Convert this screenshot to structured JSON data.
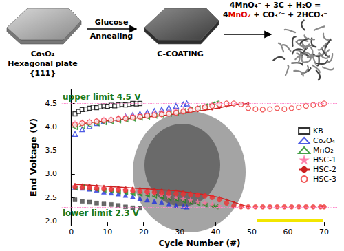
{
  "diagram": {
    "start_labels": [
      "Co₃O₄",
      "Hexagonal plate",
      "{111}"
    ],
    "arrow_top": "Glucose",
    "arrow_bottom": "Annealing",
    "middle_label": "C-COATING",
    "equation": {
      "lines": [
        "4MnO₄⁻ + 3C + H₂O =",
        "4MnO₂ + CO₃²⁻ + 2HCO₃⁻"
      ],
      "highlight": "MnO₂",
      "color": "#e00000"
    }
  },
  "chart_data": {
    "type": "scatter",
    "x_label": "Cycle Number (#)",
    "y_label": "End Voltage (V)",
    "xlim": [
      -3,
      74
    ],
    "xticks": [
      0,
      10,
      20,
      30,
      40,
      50,
      60,
      70
    ],
    "ylim": [
      1.9,
      4.8
    ],
    "yticks": [
      {
        "value": 2,
        "label": "2.0"
      },
      2.5,
      {
        "value": 3,
        "label": "3.0"
      },
      3.5,
      {
        "value": 4,
        "label": "4.0"
      },
      4.5
    ],
    "grid": false,
    "legend": "right",
    "annotations": [
      {
        "text": "upper limit 4.5 V",
        "value": 4.5,
        "color": "#1a7a1a"
      },
      {
        "text": "lower limit 2.3 V",
        "value": 2.3,
        "color": "#1a7a1a"
      }
    ],
    "series": [
      {
        "name": "KB",
        "color": "#000000",
        "marker": "open-square",
        "x": [
          1,
          2,
          3,
          4,
          5,
          6,
          7,
          8,
          9,
          10,
          11,
          12,
          13,
          14,
          15,
          16,
          17,
          18,
          19
        ],
        "values": [
          4.28,
          4.33,
          4.37,
          4.38,
          4.4,
          4.42,
          4.41,
          4.43,
          4.45,
          4.44,
          4.46,
          4.45,
          4.47,
          4.48,
          4.47,
          4.48,
          4.5,
          4.49,
          4.5
        ]
      },
      {
        "name": "KB",
        "color": "#444444",
        "marker": "filled-square",
        "x": [
          1,
          3,
          5,
          7,
          9,
          11,
          13,
          15,
          17,
          19
        ],
        "values": [
          2.45,
          2.42,
          2.4,
          2.38,
          2.36,
          2.35,
          2.33,
          2.3,
          2.28,
          2.27
        ]
      },
      {
        "name": "Co₃O₄",
        "color": "#2233dd",
        "marker": "open-triangle",
        "x": [
          1,
          3,
          5,
          7,
          9,
          11,
          13,
          15,
          17,
          19,
          21,
          23,
          25,
          27,
          29,
          31,
          32
        ],
        "values": [
          3.85,
          3.95,
          4.02,
          4.08,
          4.12,
          4.15,
          4.18,
          4.22,
          4.25,
          4.28,
          4.31,
          4.34,
          4.37,
          4.41,
          4.45,
          4.48,
          4.5
        ]
      },
      {
        "name": "Co₃O₄",
        "color": "#2233dd",
        "marker": "filled-triangle",
        "x": [
          1,
          3,
          5,
          7,
          9,
          11,
          13,
          15,
          17,
          19,
          21,
          23,
          25,
          27,
          29,
          31,
          32
        ],
        "values": [
          2.72,
          2.7,
          2.68,
          2.66,
          2.62,
          2.6,
          2.58,
          2.55,
          2.52,
          2.48,
          2.45,
          2.42,
          2.4,
          2.36,
          2.33,
          2.31,
          2.3
        ]
      },
      {
        "name": "MnO₂",
        "color": "#1a8a1a",
        "marker": "open-left-triangle",
        "x": [
          1,
          3,
          5,
          7,
          9,
          11,
          13,
          15,
          17,
          19,
          21,
          23,
          25,
          27,
          29,
          31,
          33,
          35,
          37,
          39,
          40
        ],
        "values": [
          4.0,
          4.02,
          4.05,
          4.08,
          4.1,
          4.12,
          4.14,
          4.16,
          4.18,
          4.2,
          4.22,
          4.24,
          4.26,
          4.28,
          4.31,
          4.34,
          4.37,
          4.4,
          4.44,
          4.48,
          4.5
        ]
      },
      {
        "name": "MnO₂",
        "color": "#1a8a1a",
        "marker": "filled-left-triangle",
        "x": [
          1,
          3,
          5,
          7,
          9,
          11,
          13,
          15,
          17,
          19,
          21,
          23,
          25,
          27,
          29,
          31,
          33,
          35,
          37,
          39,
          40
        ],
        "values": [
          2.7,
          2.72,
          2.68,
          2.67,
          2.65,
          2.64,
          2.62,
          2.6,
          2.58,
          2.57,
          2.55,
          2.53,
          2.51,
          2.48,
          2.46,
          2.43,
          2.4,
          2.37,
          2.34,
          2.32,
          2.3
        ]
      },
      {
        "name": "HSC-1",
        "color": "#ff6fa0",
        "marker": "filled-star",
        "x": [
          1,
          3,
          5,
          7,
          9,
          11,
          13,
          15,
          17,
          19,
          21,
          23,
          25,
          27,
          29,
          31,
          33,
          35,
          37,
          39,
          41
        ],
        "values": [
          4.08,
          4.1,
          4.12,
          4.14,
          4.16,
          4.18,
          4.2,
          4.22,
          4.24,
          4.25,
          4.27,
          4.29,
          4.31,
          4.33,
          4.35,
          4.37,
          4.39,
          4.42,
          4.45,
          4.48,
          4.5
        ]
      },
      {
        "name": "HSC-1",
        "color": "#ff6fa0",
        "marker": "filled-star",
        "x": [
          1,
          3,
          5,
          7,
          9,
          11,
          13,
          15,
          17,
          19,
          21,
          23,
          25,
          27,
          29,
          31,
          33,
          35,
          37,
          39,
          41
        ],
        "values": [
          2.74,
          2.73,
          2.72,
          2.71,
          2.7,
          2.69,
          2.68,
          2.66,
          2.65,
          2.63,
          2.61,
          2.58,
          2.56,
          2.53,
          2.5,
          2.47,
          2.44,
          2.41,
          2.38,
          2.35,
          2.32
        ]
      },
      {
        "name": "HSC-2",
        "color": "#cc2222",
        "marker": "filled-dot",
        "type": "line",
        "line_style": "solid",
        "x": [
          1,
          3,
          5,
          7,
          9,
          11,
          13,
          15,
          17,
          19,
          21,
          23,
          25,
          27,
          29,
          31,
          33,
          35,
          37,
          39,
          41,
          43,
          45,
          47,
          49
        ],
        "values": [
          4.05,
          4.07,
          4.09,
          4.11,
          4.12,
          4.14,
          4.15,
          4.17,
          4.18,
          4.2,
          4.21,
          4.23,
          4.24,
          4.26,
          4.28,
          4.3,
          4.32,
          4.34,
          4.36,
          4.38,
          4.41,
          4.44,
          4.47,
          4.49,
          4.5
        ]
      },
      {
        "name": "HSC-2",
        "color": "#cc2222",
        "marker": "filled-dot",
        "type": "line",
        "line_style": "solid",
        "x": [
          1,
          3,
          5,
          7,
          9,
          11,
          13,
          15,
          17,
          19,
          21,
          23,
          25,
          27,
          29,
          31,
          33,
          35,
          37,
          39,
          41,
          43,
          45,
          47,
          49
        ],
        "values": [
          2.78,
          2.77,
          2.76,
          2.75,
          2.74,
          2.73,
          2.72,
          2.71,
          2.7,
          2.69,
          2.68,
          2.67,
          2.66,
          2.65,
          2.64,
          2.62,
          2.6,
          2.58,
          2.56,
          2.53,
          2.5,
          2.45,
          2.4,
          2.35,
          2.3
        ]
      },
      {
        "name": "HSC-3",
        "color": "#ee3333",
        "marker": "open-circle",
        "x": [
          1,
          3,
          5,
          7,
          9,
          11,
          13,
          15,
          17,
          19,
          21,
          23,
          25,
          27,
          29,
          31,
          33,
          35,
          37,
          39,
          41,
          43,
          45,
          47,
          49,
          51,
          53,
          55,
          57,
          59,
          61,
          63,
          65,
          67,
          69,
          70
        ],
        "values": [
          4.05,
          4.08,
          4.1,
          4.12,
          4.14,
          4.15,
          4.17,
          4.18,
          4.2,
          4.22,
          4.24,
          4.25,
          4.27,
          4.28,
          4.3,
          4.33,
          4.36,
          4.39,
          4.42,
          4.45,
          4.48,
          4.5,
          4.5,
          4.48,
          4.4,
          4.38,
          4.37,
          4.38,
          4.4,
          4.38,
          4.4,
          4.42,
          4.45,
          4.47,
          4.48,
          4.5
        ]
      },
      {
        "name": "HSC-3",
        "color": "#ee3333",
        "marker": "filled-circle",
        "x": [
          1,
          3,
          5,
          7,
          9,
          11,
          13,
          15,
          17,
          19,
          21,
          23,
          25,
          27,
          29,
          31,
          33,
          35,
          37,
          39,
          41,
          43,
          45,
          47,
          49,
          51,
          53,
          55,
          57,
          59,
          61,
          63,
          65,
          67,
          69,
          70
        ],
        "values": [
          2.72,
          2.71,
          2.7,
          2.69,
          2.68,
          2.67,
          2.66,
          2.65,
          2.64,
          2.63,
          2.62,
          2.61,
          2.6,
          2.59,
          2.58,
          2.57,
          2.56,
          2.55,
          2.53,
          2.5,
          2.45,
          2.38,
          2.32,
          2.3,
          2.3,
          2.3,
          2.3,
          2.3,
          2.3,
          2.3,
          2.3,
          2.3,
          2.3,
          2.3,
          2.3,
          2.3
        ]
      }
    ]
  }
}
